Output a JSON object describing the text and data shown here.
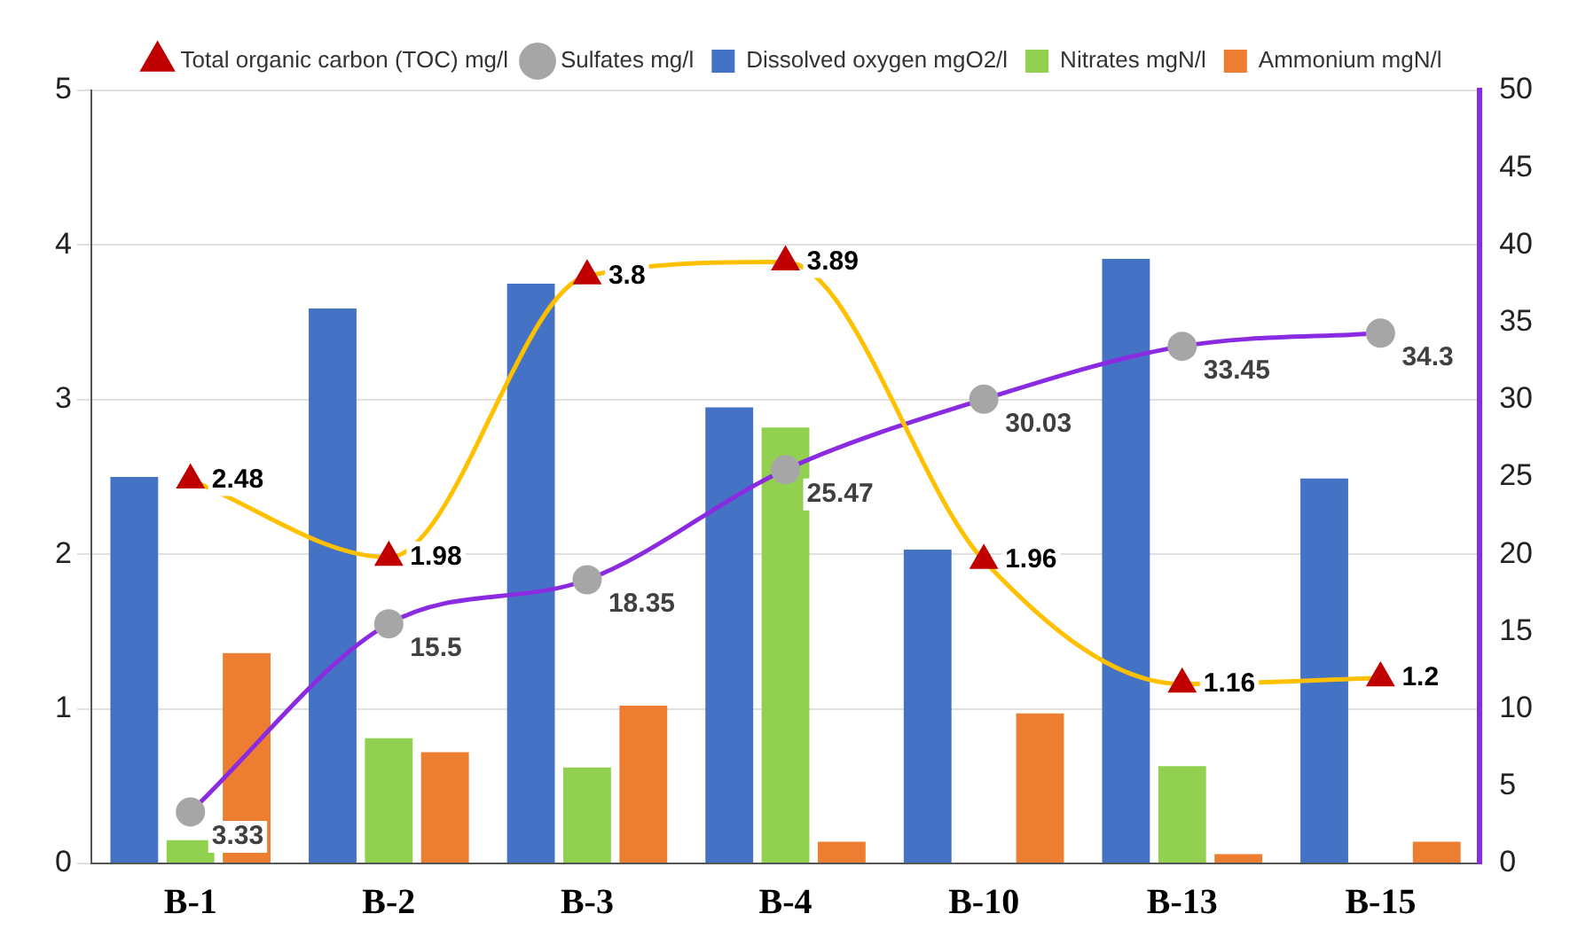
{
  "chart_data": {
    "type": "bar",
    "categories": [
      "B-1",
      "B-2",
      "B-3",
      "B-4",
      "B-10",
      "B-13",
      "B-15"
    ],
    "series": [
      {
        "name": "Dissolved oxygen mgO2/l",
        "color": "#4472c4",
        "values": [
          2.5,
          3.59,
          3.75,
          2.95,
          2.03,
          3.91,
          2.49
        ]
      },
      {
        "name": "Nitrates mgN/l",
        "color": "#92d050",
        "values": [
          0.15,
          0.81,
          0.62,
          2.82,
          null,
          0.63,
          null
        ]
      },
      {
        "name": "Ammonium mgN/l",
        "color": "#ed7d31",
        "values": [
          1.36,
          0.72,
          1.02,
          0.14,
          0.97,
          0.06,
          0.14
        ]
      },
      {
        "name": "Total organic carbon (TOC) mg/l",
        "type": "line",
        "color": "#ffc000",
        "colors": [
          "#c00000",
          "#c00000",
          "#c00000",
          "#c00000",
          "#c00000",
          "#c00000",
          "#c00000"
        ],
        "marker": "triangle",
        "values": [
          2.48,
          1.98,
          3.8,
          3.89,
          1.96,
          1.16,
          1.2
        ],
        "value_labels": [
          "2.48",
          "1.98",
          "3.8",
          "3.89",
          "1.96",
          "1.16",
          "1.2"
        ]
      },
      {
        "name": "Sulfates mg/l",
        "type": "line",
        "axis": "y2",
        "color": "#8a2be2",
        "colors": [
          "#a6a6a6",
          "#a6a6a6",
          "#a6a6a6",
          "#a6a6a6",
          "#a6a6a6",
          "#a6a6a6",
          "#a6a6a6"
        ],
        "marker": "circle",
        "values": [
          3.33,
          15.5,
          18.35,
          25.47,
          30.03,
          33.45,
          34.3
        ],
        "value_labels": [
          "3.33",
          "15.5",
          "18.35",
          "25.47",
          "30.03",
          "33.45",
          "34.3"
        ]
      }
    ],
    "ylim": [
      0,
      5
    ],
    "yticks": [
      0,
      1,
      2,
      3,
      4,
      5
    ],
    "y2lim": [
      0,
      50
    ],
    "y2ticks": [
      0,
      5,
      10,
      15,
      20,
      25,
      30,
      35,
      40,
      45,
      50
    ],
    "grid": "y",
    "legend": "top"
  }
}
